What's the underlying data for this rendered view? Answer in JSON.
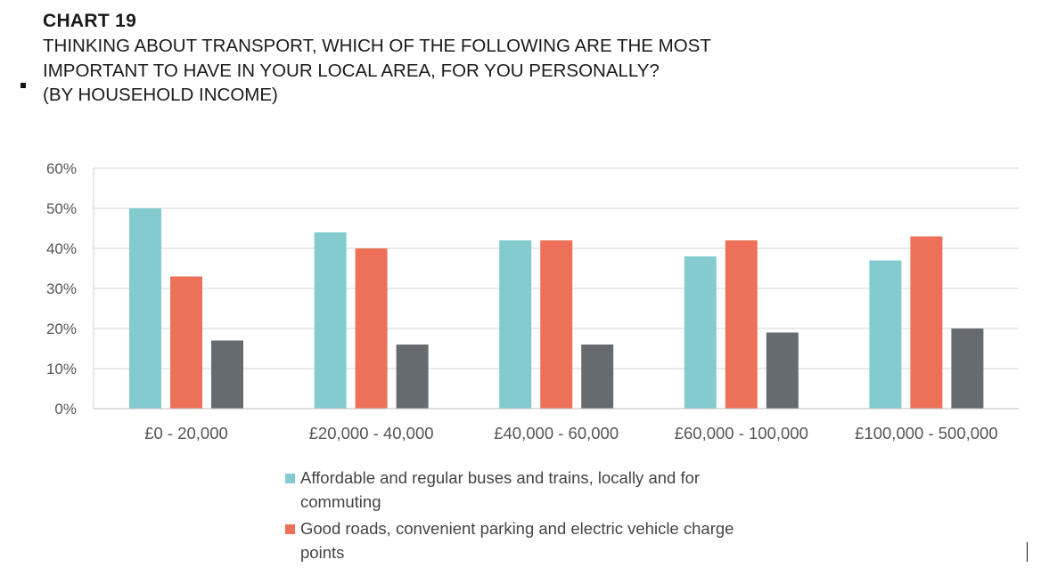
{
  "header": {
    "chart_number": "CHART 19",
    "title_lines": [
      "THINKING ABOUT TRANSPORT, WHICH OF THE FOLLOWING ARE THE MOST",
      "IMPORTANT TO HAVE IN YOUR LOCAL AREA, FOR YOU PERSONALLY?",
      "(BY HOUSEHOLD INCOME)"
    ]
  },
  "legend": {
    "items": [
      {
        "lines": [
          "Affordable and regular buses and trains, locally and for",
          "commuting"
        ],
        "color": "#84cbd0"
      },
      {
        "lines": [
          "Good roads, convenient parking and electric vehicle charge",
          "points"
        ],
        "color": "#ec7158"
      }
    ]
  },
  "chart_data": {
    "type": "bar",
    "title": "",
    "xlabel": "",
    "ylabel": "",
    "categories": [
      "£0 - 20,000",
      "£20,000 - 40,000",
      "£40,000 - 60,000",
      "£60,000 - 100,000",
      "£100,000 - 500,000"
    ],
    "series": [
      {
        "name": "Affordable and regular buses and trains, locally and for commuting",
        "color": "#84cbd0",
        "values": [
          50,
          44,
          42,
          38,
          37
        ]
      },
      {
        "name": "Good roads, convenient parking and electric vehicle charge points",
        "color": "#ec7158",
        "values": [
          33,
          40,
          42,
          42,
          43
        ]
      },
      {
        "color": "#666b70",
        "values": [
          17,
          16,
          16,
          19,
          20
        ]
      }
    ],
    "ylim": [
      0,
      60
    ],
    "yticks": [
      0,
      10,
      20,
      30,
      40,
      50,
      60
    ],
    "ytick_labels": [
      "0%",
      "10%",
      "20%",
      "30%",
      "40%",
      "50%",
      "60%"
    ],
    "grid": true,
    "legend_position": "bottom"
  }
}
